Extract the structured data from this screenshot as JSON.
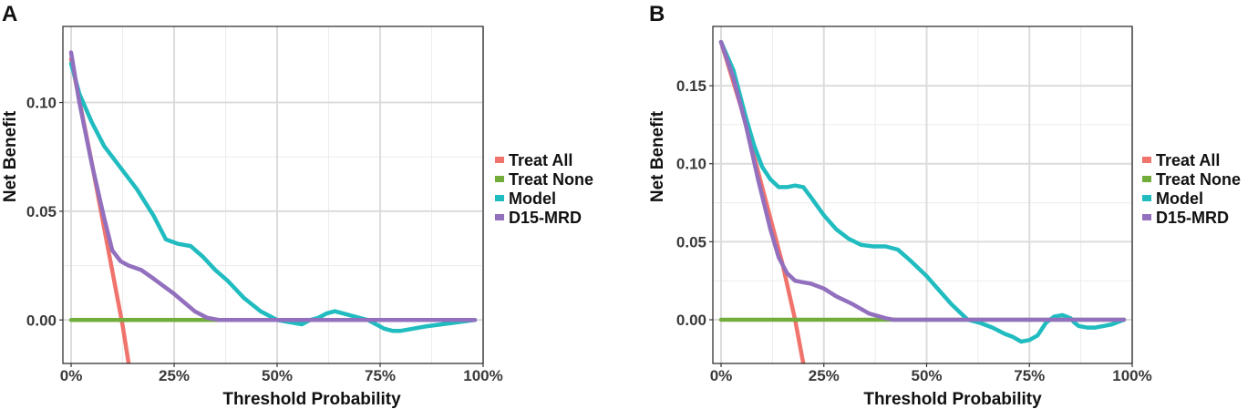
{
  "chart_data": [
    {
      "type": "line",
      "panel_label": "A",
      "xlabel": "Threshold Probability",
      "ylabel": "Net Benefit",
      "xlim": [
        -0.02,
        1.0
      ],
      "ylim": [
        -0.02,
        0.135
      ],
      "x_ticks": [
        0,
        0.25,
        0.5,
        0.75,
        1.0
      ],
      "x_tick_labels": [
        "0%",
        "25%",
        "50%",
        "75%",
        "100%"
      ],
      "y_ticks": [
        0.0,
        0.05,
        0.1
      ],
      "y_tick_labels": [
        "0.00",
        "0.05",
        "0.10"
      ],
      "grid": true,
      "legend": "right",
      "series": [
        {
          "name": "Treat All",
          "color": "#f0736c",
          "x": [
            0.0,
            0.05,
            0.1,
            0.125,
            0.14
          ],
          "y": [
            0.12,
            0.0725,
            0.0225,
            -0.0025,
            -0.0205
          ]
        },
        {
          "name": "Treat None",
          "color": "#72ad3c",
          "x": [
            0.0,
            0.98
          ],
          "y": [
            0.0,
            0.0
          ]
        },
        {
          "name": "Model",
          "color": "#21bcc0",
          "x": [
            0.0,
            0.02,
            0.05,
            0.08,
            0.12,
            0.16,
            0.2,
            0.23,
            0.26,
            0.29,
            0.32,
            0.35,
            0.38,
            0.42,
            0.46,
            0.5,
            0.53,
            0.56,
            0.58,
            0.6,
            0.62,
            0.64,
            0.66,
            0.68,
            0.7,
            0.72,
            0.74,
            0.76,
            0.78,
            0.8,
            0.83,
            0.86,
            0.9,
            0.94,
            0.98
          ],
          "y": [
            0.118,
            0.104,
            0.091,
            0.08,
            0.07,
            0.06,
            0.048,
            0.037,
            0.035,
            0.034,
            0.029,
            0.023,
            0.018,
            0.01,
            0.004,
            0.0,
            -0.001,
            -0.002,
            0.0,
            0.001,
            0.003,
            0.004,
            0.003,
            0.002,
            0.001,
            0.0,
            -0.002,
            -0.004,
            -0.005,
            -0.005,
            -0.004,
            -0.003,
            -0.002,
            -0.001,
            0.0
          ]
        },
        {
          "name": "D15-MRD",
          "color": "#9270be",
          "x": [
            0.0,
            0.02,
            0.05,
            0.08,
            0.1,
            0.12,
            0.14,
            0.17,
            0.2,
            0.25,
            0.3,
            0.33,
            0.36,
            0.4,
            0.5,
            0.6,
            0.7,
            0.8,
            0.9,
            0.98
          ],
          "y": [
            0.123,
            0.1,
            0.072,
            0.047,
            0.032,
            0.027,
            0.025,
            0.023,
            0.019,
            0.012,
            0.004,
            0.001,
            0.0,
            0.0,
            0.0,
            0.0,
            0.0,
            0.0,
            0.0,
            0.0
          ]
        }
      ]
    },
    {
      "type": "line",
      "panel_label": "B",
      "xlabel": "Threshold Probability",
      "ylabel": "Net Benefit",
      "xlim": [
        -0.02,
        1.0
      ],
      "ylim": [
        -0.028,
        0.188
      ],
      "x_ticks": [
        0,
        0.25,
        0.5,
        0.75,
        1.0
      ],
      "x_tick_labels": [
        "0%",
        "25%",
        "50%",
        "75%",
        "100%"
      ],
      "y_ticks": [
        0.0,
        0.05,
        0.1,
        0.15
      ],
      "y_tick_labels": [
        "0.00",
        "0.05",
        "0.10",
        "0.15"
      ],
      "grid": true,
      "legend": "right",
      "series": [
        {
          "name": "Treat All",
          "color": "#f0736c",
          "x": [
            0.0,
            0.05,
            0.1,
            0.15,
            0.18,
            0.2
          ],
          "y": [
            0.178,
            0.135,
            0.085,
            0.035,
            0.0,
            -0.028
          ]
        },
        {
          "name": "Treat None",
          "color": "#72ad3c",
          "x": [
            0.0,
            0.98
          ],
          "y": [
            0.0,
            0.0
          ]
        },
        {
          "name": "Model",
          "color": "#21bcc0",
          "x": [
            0.0,
            0.03,
            0.06,
            0.08,
            0.1,
            0.12,
            0.14,
            0.16,
            0.18,
            0.2,
            0.22,
            0.25,
            0.28,
            0.31,
            0.34,
            0.37,
            0.4,
            0.43,
            0.46,
            0.5,
            0.53,
            0.56,
            0.58,
            0.6,
            0.63,
            0.66,
            0.69,
            0.71,
            0.73,
            0.75,
            0.77,
            0.79,
            0.81,
            0.83,
            0.85,
            0.86,
            0.87,
            0.89,
            0.91,
            0.93,
            0.95,
            0.98
          ],
          "y": [
            0.178,
            0.16,
            0.13,
            0.112,
            0.098,
            0.09,
            0.085,
            0.085,
            0.086,
            0.085,
            0.078,
            0.067,
            0.058,
            0.052,
            0.048,
            0.047,
            0.047,
            0.045,
            0.038,
            0.028,
            0.019,
            0.01,
            0.005,
            0.0,
            -0.002,
            -0.005,
            -0.009,
            -0.011,
            -0.014,
            -0.013,
            -0.01,
            -0.002,
            0.002,
            0.003,
            0.001,
            -0.002,
            -0.004,
            -0.005,
            -0.005,
            -0.004,
            -0.003,
            0.0
          ]
        },
        {
          "name": "D15-MRD",
          "color": "#9270be",
          "x": [
            0.0,
            0.03,
            0.06,
            0.09,
            0.12,
            0.14,
            0.16,
            0.18,
            0.2,
            0.22,
            0.25,
            0.28,
            0.32,
            0.36,
            0.4,
            0.42,
            0.5,
            0.6,
            0.7,
            0.8,
            0.9,
            0.98
          ],
          "y": [
            0.178,
            0.155,
            0.125,
            0.09,
            0.058,
            0.04,
            0.03,
            0.025,
            0.024,
            0.023,
            0.02,
            0.015,
            0.01,
            0.004,
            0.001,
            0.0,
            0.0,
            0.0,
            0.0,
            0.0,
            0.0,
            0.0
          ]
        }
      ]
    }
  ]
}
